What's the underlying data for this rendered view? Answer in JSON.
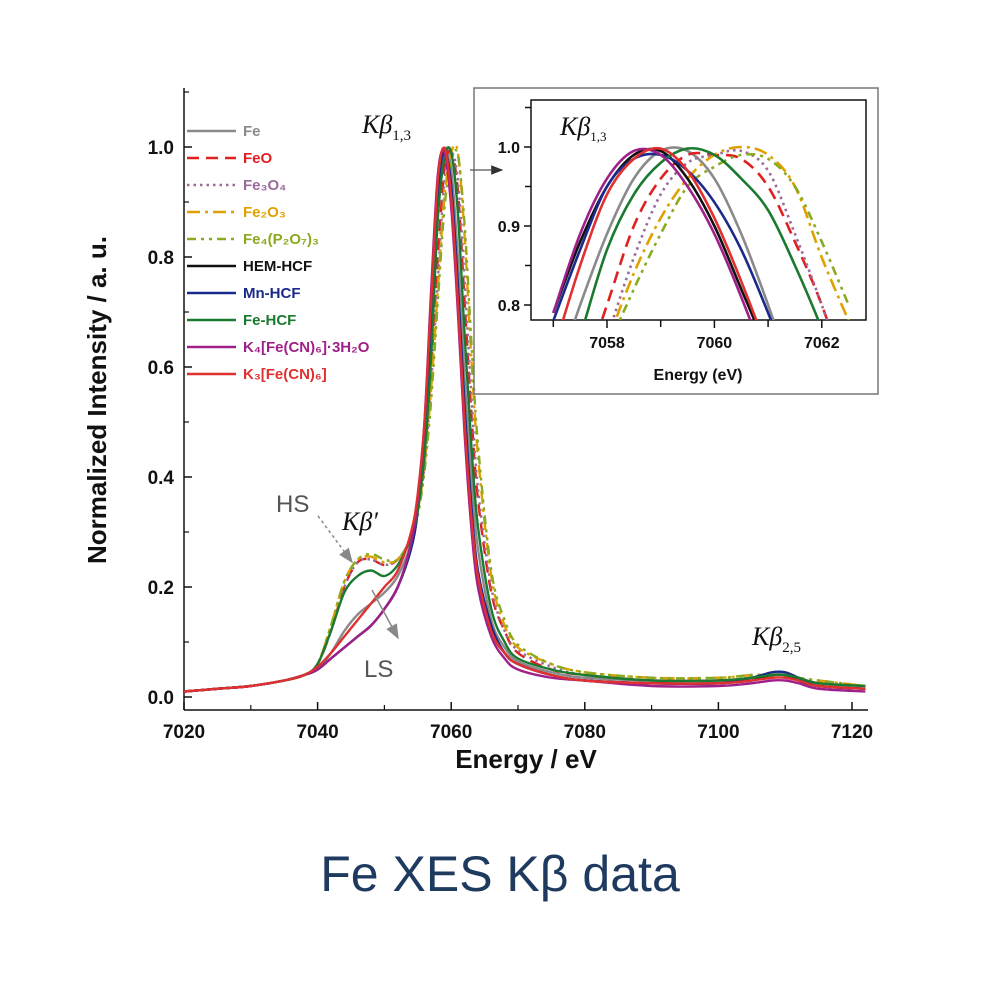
{
  "title": "Fe XES Kβ data",
  "chart_data": {
    "type": "line",
    "xlabel": "Energy / eV",
    "ylabel": "Normalized Intensity / a. u.",
    "xlim": [
      7020,
      7122
    ],
    "ylim": [
      -0.02,
      1.1
    ],
    "xticks": [
      "7020",
      "7040",
      "7060",
      "7080",
      "7100",
      "7120"
    ],
    "yticks": [
      "0.0",
      "0.2",
      "0.4",
      "0.6",
      "0.8",
      "1.0"
    ],
    "grid": false,
    "legend_position": "top-left",
    "annotations": {
      "kb13": {
        "main": "Kβ",
        "sub": "1,3"
      },
      "kbprime": "Kβ′",
      "hs": "HS",
      "ls": "LS",
      "kb25": {
        "main": "Kβ",
        "sub": "2,5"
      }
    },
    "x": [
      7020,
      7025,
      7030,
      7035,
      7038,
      7040,
      7042,
      7044,
      7046,
      7048,
      7050,
      7052,
      7054,
      7055,
      7056,
      7057,
      7058,
      7059,
      7060,
      7061,
      7062,
      7063,
      7064,
      7066,
      7068,
      7070,
      7075,
      7080,
      7090,
      7100,
      7105,
      7108,
      7110,
      7112,
      7115,
      7122
    ],
    "series": [
      {
        "name": "Fe",
        "color": "#8a8a8a",
        "style": "solid",
        "values": [
          0.01,
          0.015,
          0.02,
          0.03,
          0.04,
          0.05,
          0.08,
          0.12,
          0.15,
          0.17,
          0.19,
          0.22,
          0.28,
          0.34,
          0.46,
          0.66,
          0.89,
          0.995,
          0.96,
          0.8,
          0.58,
          0.4,
          0.27,
          0.14,
          0.09,
          0.065,
          0.045,
          0.035,
          0.03,
          0.03,
          0.035,
          0.04,
          0.04,
          0.035,
          0.025,
          0.02
        ]
      },
      {
        "name": "FeO",
        "color": "#e02020",
        "style": "dash",
        "values": [
          0.01,
          0.015,
          0.02,
          0.03,
          0.04,
          0.06,
          0.12,
          0.2,
          0.245,
          0.25,
          0.24,
          0.25,
          0.29,
          0.34,
          0.43,
          0.6,
          0.8,
          0.96,
          0.99,
          0.92,
          0.72,
          0.52,
          0.36,
          0.19,
          0.12,
          0.08,
          0.05,
          0.04,
          0.03,
          0.03,
          0.035,
          0.04,
          0.04,
          0.035,
          0.025,
          0.02
        ]
      },
      {
        "name": "Fe₃O₄",
        "color": "#9a6a9a",
        "style": "dot",
        "values": [
          0.01,
          0.015,
          0.02,
          0.03,
          0.04,
          0.06,
          0.12,
          0.2,
          0.245,
          0.25,
          0.24,
          0.25,
          0.29,
          0.34,
          0.42,
          0.57,
          0.76,
          0.94,
          0.99,
          0.94,
          0.76,
          0.55,
          0.38,
          0.2,
          0.12,
          0.085,
          0.055,
          0.04,
          0.03,
          0.03,
          0.035,
          0.04,
          0.04,
          0.035,
          0.025,
          0.02
        ]
      },
      {
        "name": "Fe₂O₃",
        "color": "#e0a000",
        "style": "dashdot",
        "values": [
          0.01,
          0.015,
          0.02,
          0.03,
          0.04,
          0.06,
          0.13,
          0.21,
          0.25,
          0.255,
          0.245,
          0.25,
          0.29,
          0.34,
          0.42,
          0.56,
          0.74,
          0.91,
          0.99,
          0.99,
          0.84,
          0.62,
          0.44,
          0.22,
          0.13,
          0.09,
          0.06,
          0.045,
          0.035,
          0.035,
          0.04,
          0.04,
          0.04,
          0.035,
          0.03,
          0.02
        ]
      },
      {
        "name": "Fe₄(P₂O₇)₃",
        "color": "#8aaa20",
        "style": "dashdotdot",
        "values": [
          0.01,
          0.015,
          0.02,
          0.03,
          0.04,
          0.06,
          0.13,
          0.21,
          0.25,
          0.26,
          0.25,
          0.25,
          0.29,
          0.33,
          0.41,
          0.54,
          0.72,
          0.89,
          0.975,
          0.985,
          0.86,
          0.65,
          0.46,
          0.23,
          0.14,
          0.095,
          0.06,
          0.045,
          0.035,
          0.035,
          0.04,
          0.04,
          0.04,
          0.035,
          0.03,
          0.02
        ]
      },
      {
        "name": "HEM-HCF",
        "color": "#111111",
        "style": "solid",
        "values": [
          0.01,
          0.015,
          0.02,
          0.03,
          0.04,
          0.05,
          0.07,
          0.09,
          0.11,
          0.13,
          0.16,
          0.2,
          0.27,
          0.34,
          0.47,
          0.7,
          0.92,
          0.995,
          0.9,
          0.72,
          0.5,
          0.33,
          0.22,
          0.12,
          0.08,
          0.06,
          0.04,
          0.03,
          0.025,
          0.025,
          0.03,
          0.04,
          0.04,
          0.03,
          0.02,
          0.015
        ]
      },
      {
        "name": "Mn-HCF",
        "color": "#1a2a8a",
        "style": "solid",
        "values": [
          0.01,
          0.015,
          0.02,
          0.03,
          0.04,
          0.05,
          0.07,
          0.09,
          0.11,
          0.13,
          0.16,
          0.2,
          0.27,
          0.34,
          0.47,
          0.7,
          0.92,
          0.99,
          0.93,
          0.75,
          0.53,
          0.35,
          0.23,
          0.13,
          0.08,
          0.06,
          0.04,
          0.03,
          0.025,
          0.025,
          0.035,
          0.045,
          0.045,
          0.035,
          0.02,
          0.015
        ]
      },
      {
        "name": "Fe-HCF",
        "color": "#1a7a30",
        "style": "solid",
        "values": [
          0.01,
          0.015,
          0.02,
          0.03,
          0.04,
          0.06,
          0.12,
          0.19,
          0.22,
          0.23,
          0.22,
          0.24,
          0.29,
          0.34,
          0.44,
          0.62,
          0.87,
          0.98,
          0.99,
          0.88,
          0.66,
          0.46,
          0.31,
          0.16,
          0.1,
          0.07,
          0.05,
          0.04,
          0.03,
          0.03,
          0.035,
          0.04,
          0.04,
          0.035,
          0.025,
          0.02
        ]
      },
      {
        "name": "K₄[Fe(CN)₆]·3H₂O",
        "color": "#a0208a",
        "style": "solid",
        "values": [
          0.01,
          0.015,
          0.02,
          0.03,
          0.04,
          0.05,
          0.07,
          0.09,
          0.11,
          0.13,
          0.16,
          0.2,
          0.28,
          0.36,
          0.5,
          0.74,
          0.95,
          0.99,
          0.89,
          0.7,
          0.48,
          0.31,
          0.2,
          0.11,
          0.07,
          0.05,
          0.035,
          0.03,
          0.02,
          0.02,
          0.025,
          0.03,
          0.03,
          0.025,
          0.015,
          0.01
        ]
      },
      {
        "name": "K₃[Fe(CN)₆]",
        "color": "#e03030",
        "style": "solid",
        "values": [
          0.01,
          0.015,
          0.02,
          0.03,
          0.04,
          0.055,
          0.08,
          0.11,
          0.14,
          0.17,
          0.2,
          0.23,
          0.3,
          0.37,
          0.5,
          0.72,
          0.94,
          0.998,
          0.91,
          0.72,
          0.5,
          0.33,
          0.22,
          0.12,
          0.08,
          0.06,
          0.04,
          0.03,
          0.025,
          0.025,
          0.03,
          0.035,
          0.035,
          0.03,
          0.02,
          0.015
        ]
      }
    ],
    "inset": {
      "xlabel": "Energy (eV)",
      "label": {
        "main": "Kβ",
        "sub": "1,3"
      },
      "xlim": [
        7056.6,
        7062.8
      ],
      "ylim": [
        0.78,
        1.06
      ],
      "xticks": [
        "7058",
        "7060",
        "7062"
      ],
      "yticks": [
        "0.8",
        "0.9",
        "1.0"
      ],
      "x": [
        7057,
        7057.5,
        7058,
        7058.5,
        7059,
        7059.5,
        7060,
        7060.5,
        7061,
        7061.5,
        7062,
        7062.5
      ],
      "values": [
        [
          0.7,
          0.8,
          0.89,
          0.96,
          0.995,
          0.995,
          0.96,
          0.89,
          0.8,
          0.7,
          0.6,
          0.5
        ],
        [
          0.6,
          0.7,
          0.8,
          0.9,
          0.96,
          0.99,
          0.99,
          0.985,
          0.95,
          0.88,
          0.8,
          0.7
        ],
        [
          0.55,
          0.67,
          0.76,
          0.86,
          0.94,
          0.98,
          0.99,
          0.995,
          0.97,
          0.89,
          0.8,
          0.7
        ],
        [
          0.5,
          0.64,
          0.75,
          0.84,
          0.91,
          0.96,
          0.99,
          1.0,
          0.99,
          0.95,
          0.86,
          0.78
        ],
        [
          0.5,
          0.63,
          0.74,
          0.82,
          0.89,
          0.95,
          0.975,
          0.99,
          0.985,
          0.95,
          0.88,
          0.8
        ],
        [
          0.79,
          0.88,
          0.95,
          0.99,
          0.995,
          0.96,
          0.9,
          0.82,
          0.74,
          0.66,
          0.57,
          0.48
        ],
        [
          0.78,
          0.87,
          0.95,
          0.985,
          0.99,
          0.97,
          0.93,
          0.87,
          0.79,
          0.7,
          0.6,
          0.5
        ],
        [
          0.65,
          0.76,
          0.87,
          0.94,
          0.98,
          0.998,
          0.99,
          0.96,
          0.92,
          0.85,
          0.77,
          0.68
        ],
        [
          0.79,
          0.89,
          0.96,
          0.995,
          0.99,
          0.95,
          0.89,
          0.81,
          0.72,
          0.62,
          0.52,
          0.42
        ],
        [
          0.74,
          0.85,
          0.94,
          0.985,
          0.998,
          0.97,
          0.91,
          0.83,
          0.74,
          0.64,
          0.54,
          0.44
        ]
      ]
    }
  }
}
